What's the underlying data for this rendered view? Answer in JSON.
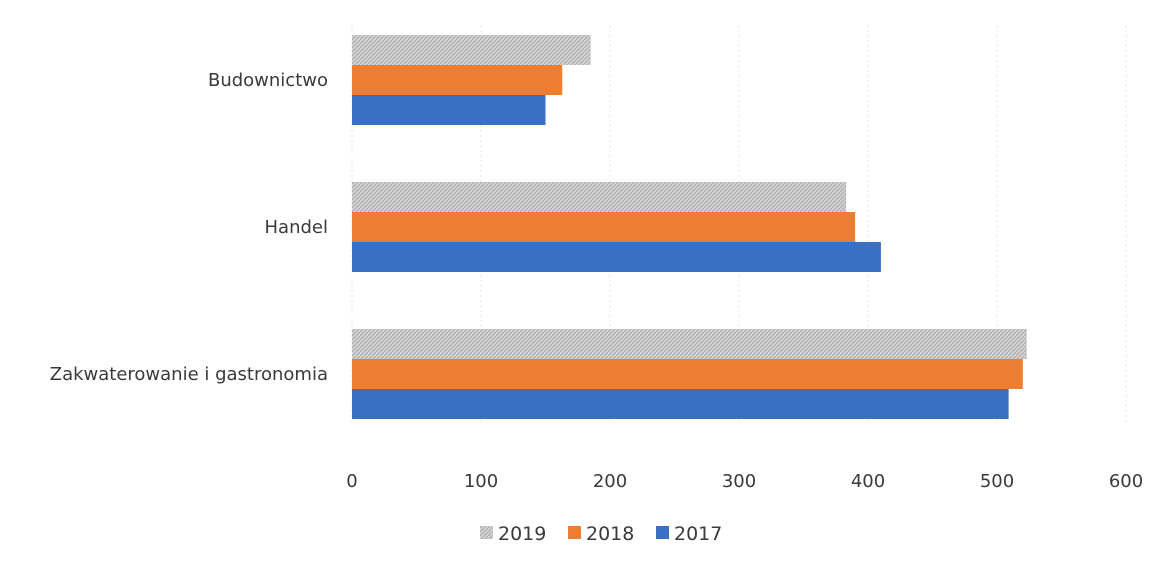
{
  "chart_data": {
    "type": "bar",
    "orientation": "horizontal",
    "categories": [
      "Budownictwo",
      "Handel",
      "Zakwaterowanie i gastronomia"
    ],
    "series": [
      {
        "name": "2019",
        "values": [
          185,
          383,
          523
        ],
        "color": "#bdbdbd"
      },
      {
        "name": "2018",
        "values": [
          163,
          390,
          520
        ],
        "color": "#ed7d31"
      },
      {
        "name": "2017",
        "values": [
          150,
          410,
          509
        ],
        "color": "#3a6fc4"
      }
    ],
    "xlim": [
      0,
      600
    ],
    "x_ticks": [
      "0",
      "100",
      "200",
      "300",
      "400",
      "500",
      "600"
    ],
    "grid": true,
    "legend_position": "bottom",
    "title": "",
    "xlabel": "",
    "ylabel": ""
  }
}
